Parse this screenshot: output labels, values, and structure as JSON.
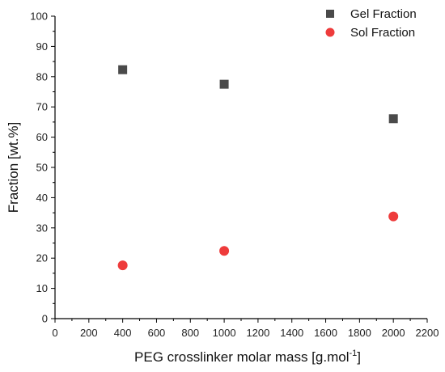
{
  "chart_data": {
    "type": "scatter",
    "title": "",
    "xlabel": "PEG crosslinker molar mass [g.mol",
    "xlabel_superscript": "-1",
    "xlabel_suffix": "]",
    "ylabel": "Fraction [wt.%]",
    "xlim": [
      0,
      2200
    ],
    "ylim": [
      0,
      100
    ],
    "xticks": [
      "0",
      "200",
      "400",
      "600",
      "800",
      "1000",
      "1200",
      "1400",
      "1600",
      "1800",
      "2000",
      "2200"
    ],
    "yticks": [
      "0",
      "10",
      "20",
      "30",
      "40",
      "50",
      "60",
      "70",
      "80",
      "90",
      "100"
    ],
    "grid": false,
    "legend_position": "top-right",
    "series": [
      {
        "name": "Gel Fraction",
        "marker": "square",
        "color": "#4a4a4a",
        "points": [
          {
            "x": 400,
            "y": 82.3
          },
          {
            "x": 1000,
            "y": 77.5
          },
          {
            "x": 2000,
            "y": 66.1
          }
        ]
      },
      {
        "name": "Sol Fraction",
        "marker": "circle",
        "color": "#ee3b3b",
        "points": [
          {
            "x": 400,
            "y": 17.6
          },
          {
            "x": 1000,
            "y": 22.4
          },
          {
            "x": 2000,
            "y": 33.8
          }
        ]
      }
    ]
  }
}
